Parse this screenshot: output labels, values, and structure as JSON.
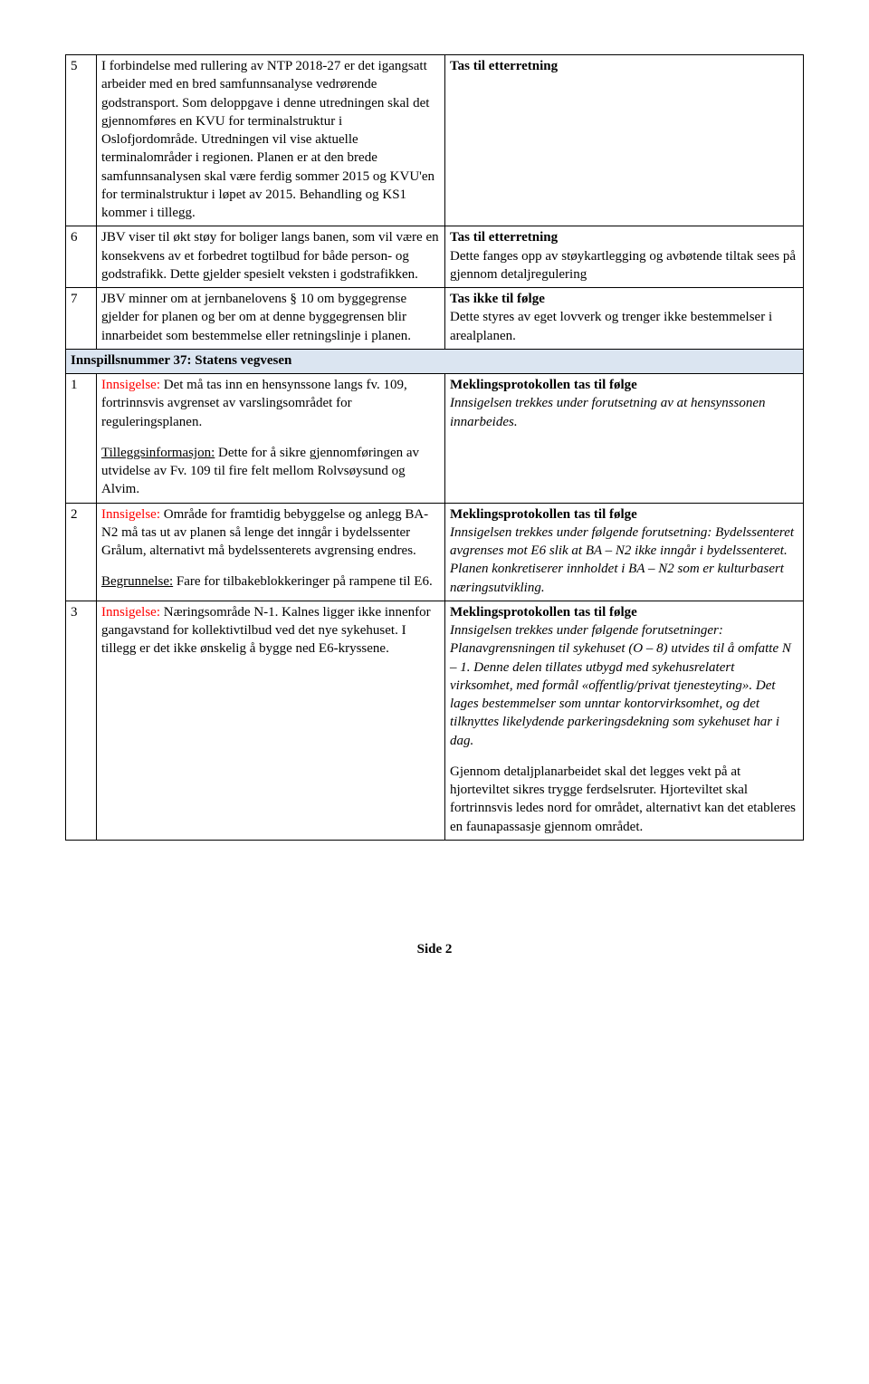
{
  "rows": [
    {
      "num": "5",
      "left": "I forbindelse med rullering av NTP 2018-27 er det igangsatt arbeider med en bred samfunnsanalyse vedrørende godstransport. Som deloppgave i denne utredningen skal det gjennomføres en KVU for terminalstruktur i Oslofjordområde. Utredningen vil vise aktuelle terminalområder i regionen. Planen er at den brede samfunnsanalysen skal være ferdig sommer 2015 og KVU'en for terminalstruktur i løpet av 2015. Behandling og KS1 kommer i tillegg.",
      "right_bold": "Tas til etterretning",
      "right_rest": ""
    },
    {
      "num": "6",
      "left": "JBV viser til økt støy for boliger langs banen, som vil være en konsekvens av et forbedret togtilbud for både person- og godstrafikk. Dette gjelder spesielt veksten i godstrafikken.",
      "right_bold": "Tas til etterretning",
      "right_rest": "Dette fanges opp av støykartlegging og avbøtende tiltak sees på gjennom detaljregulering"
    },
    {
      "num": "7",
      "left": "JBV minner om at jernbanelovens § 10 om byggegrense gjelder for planen og ber om at denne byggegrensen blir innarbeidet som bestemmelse eller retningslinje i planen.",
      "right_bold": "Tas ikke til følge",
      "right_rest": "Dette styres av eget lovverk og trenger ikke bestemmelser i arealplanen."
    }
  ],
  "section_header": "Innspillsnummer 37: Statens vegvesen",
  "s37": {
    "r1": {
      "num": "1",
      "inn_label": "Innsigelse:",
      "inn_text": " Det må tas inn en hensynssone langs fv. 109, fortrinnsvis avgrenset av varslingsområdet for reguleringsplanen.",
      "tillegg_label": "Tilleggsinformasjon:",
      "tillegg_text": " Dette for å sikre gjennomføringen av utvidelse av Fv. 109 til fire felt mellom Rolvsøysund og Alvim.",
      "right_bold": "Meklingsprotokollen tas til følge",
      "right_italic": "Innsigelsen trekkes under forutsetning av at hensynssonen innarbeides."
    },
    "r2": {
      "num": "2",
      "inn_label": "Innsigelse:",
      "inn_text": " Område for framtidig bebyggelse og anlegg BA-N2 må tas ut av planen så lenge det inngår i bydelssenter Grålum, alternativt må bydelssenterets avgrensing endres.",
      "begr_label": "Begrunnelse:",
      "begr_text": " Fare for tilbakeblokkeringer på rampene til E6.",
      "right_bold": "Meklingsprotokollen tas til følge",
      "right_italic": "Innsigelsen trekkes under følgende forutsetning: Bydelssenteret avgrenses mot E6 slik at BA – N2 ikke inngår i bydelssenteret. Planen konkretiserer innholdet i BA – N2 som er kulturbasert næringsutvikling."
    },
    "r3": {
      "num": "3",
      "inn_label": "Innsigelse:",
      "inn_text": " Næringsområde N-1. Kalnes ligger ikke innenfor gangavstand for kollektivtilbud ved det nye sykehuset. I tillegg er det ikke ønskelig å bygge ned E6-kryssene.",
      "right_bold": "Meklingsprotokollen tas til følge",
      "right_italic": "Innsigelsen trekkes under følgende forutsetninger: Planavgrensningen til sykehuset (O – 8) utvides til å omfatte N – 1. Denne delen tillates utbygd med sykehusrelatert virksomhet, med formål «offentlig/privat tjenesteyting». Det lages bestemmelser som unntar kontorvirksomhet, og det tilknyttes likelydende parkeringsdekning som sykehuset har i dag.",
      "right_p2": "Gjennom detaljplanarbeidet skal det legges vekt på at hjorteviltet sikres trygge ferdselsruter. Hjorteviltet skal fortrinnsvis ledes nord for området, alternativt kan det etableres en faunapassasje gjennom området."
    }
  },
  "footer_label": "Side ",
  "footer_page": "2"
}
